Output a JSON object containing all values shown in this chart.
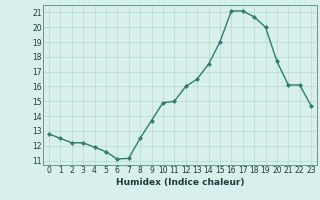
{
  "x": [
    0,
    1,
    2,
    3,
    4,
    5,
    6,
    7,
    8,
    9,
    10,
    11,
    12,
    13,
    14,
    15,
    16,
    17,
    18,
    19,
    20,
    21,
    22,
    23
  ],
  "y": [
    12.8,
    12.5,
    12.2,
    12.2,
    11.9,
    11.6,
    11.1,
    11.15,
    12.5,
    13.7,
    14.9,
    15.0,
    16.0,
    16.5,
    17.5,
    19.0,
    21.1,
    21.1,
    20.7,
    20.0,
    17.7,
    16.1,
    16.1,
    14.7
  ],
  "xlabel": "Humidex (Indice chaleur)",
  "xlim": [
    -0.5,
    23.5
  ],
  "ylim": [
    10.7,
    21.5
  ],
  "yticks": [
    11,
    12,
    13,
    14,
    15,
    16,
    17,
    18,
    19,
    20,
    21
  ],
  "xticks": [
    0,
    1,
    2,
    3,
    4,
    5,
    6,
    7,
    8,
    9,
    10,
    11,
    12,
    13,
    14,
    15,
    16,
    17,
    18,
    19,
    20,
    21,
    22,
    23
  ],
  "line_color": "#2e7d6e",
  "marker": "D",
  "marker_size": 2.0,
  "bg_color": "#d8f0eb",
  "grid_color": "#b8d8d2",
  "line_width": 1.0,
  "tick_fontsize": 5.5,
  "xlabel_fontsize": 6.5
}
